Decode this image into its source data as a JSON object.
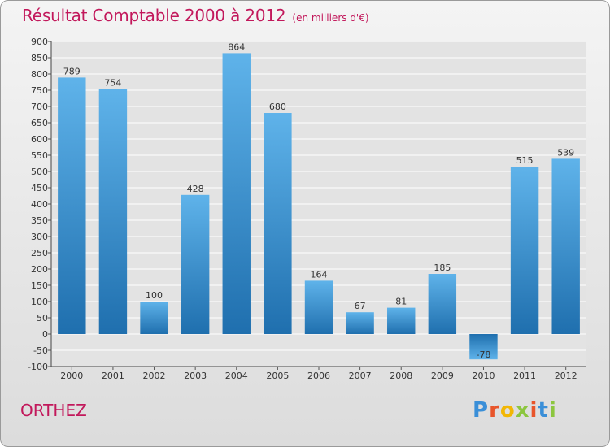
{
  "title": "Résultat Comptable 2000 à 2012",
  "subtitle": "(en milliers d'€)",
  "city": "ORTHEZ",
  "logo": {
    "text": "Proxiti",
    "colors": [
      "#3a8fd8",
      "#e8552b",
      "#f2b705",
      "#8cc63f",
      "#e8552b",
      "#3a8fd8",
      "#8cc63f"
    ]
  },
  "colors": {
    "title": "#c2185b",
    "bar_top": "#5fb3ea",
    "bar_bottom": "#1f6fae",
    "grid": "#ffffff",
    "plot_bg": "#e3e3e3"
  },
  "chart_data": {
    "type": "bar",
    "title": "Résultat Comptable 2000 à 2012",
    "categories": [
      "2000",
      "2001",
      "2002",
      "2003",
      "2004",
      "2005",
      "2006",
      "2007",
      "2008",
      "2009",
      "2010",
      "2011",
      "2012"
    ],
    "values": [
      789,
      754,
      100,
      428,
      864,
      680,
      164,
      67,
      81,
      185,
      -78,
      515,
      539
    ],
    "ylim": [
      -100,
      900
    ],
    "yticks": [
      -100,
      -50,
      0,
      50,
      100,
      150,
      200,
      250,
      300,
      350,
      400,
      450,
      500,
      550,
      600,
      650,
      700,
      750,
      800,
      850,
      900
    ],
    "grid": true,
    "legend": "none"
  }
}
